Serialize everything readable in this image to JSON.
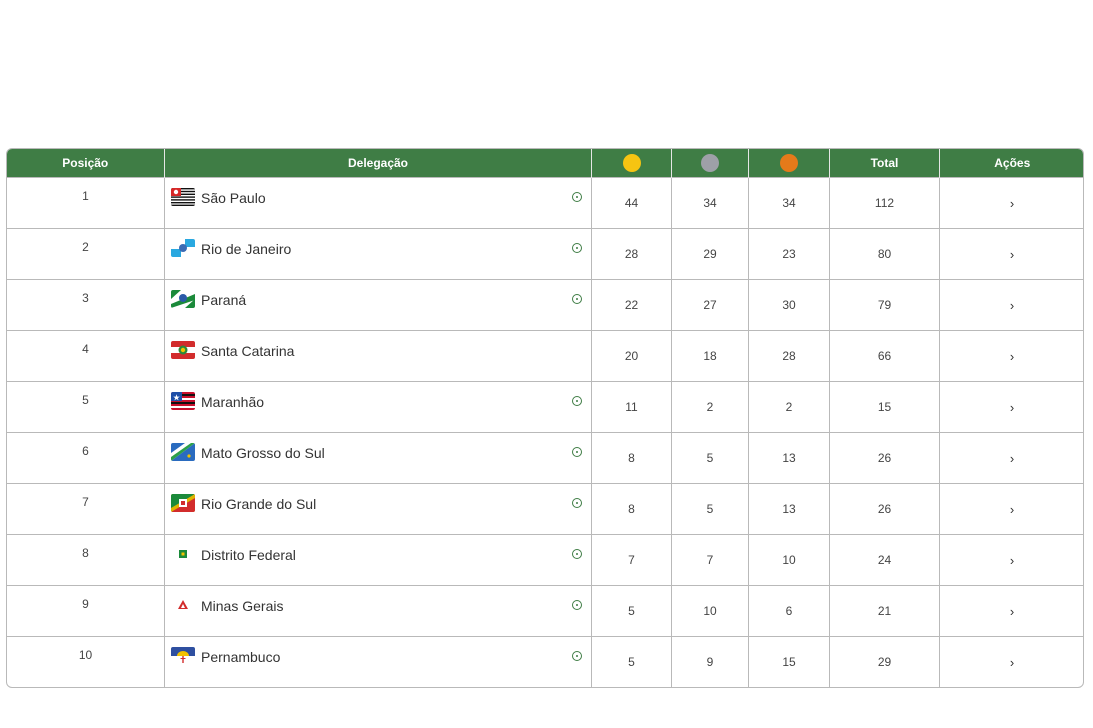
{
  "header": {
    "position": "Posição",
    "delegation": "Delegação",
    "total": "Total",
    "actions": "Ações"
  },
  "medal_colors": {
    "gold": "#f6c412",
    "silver": "#9ea0a8",
    "bronze": "#e57a1a"
  },
  "rows": [
    {
      "pos": "1",
      "name": "São Paulo",
      "gold": "44",
      "silver": "34",
      "bronze": "34",
      "total": "112",
      "info": true,
      "flag": "sp"
    },
    {
      "pos": "2",
      "name": "Rio de Janeiro",
      "gold": "28",
      "silver": "29",
      "bronze": "23",
      "total": "80",
      "info": true,
      "flag": "rj"
    },
    {
      "pos": "3",
      "name": "Paraná",
      "gold": "22",
      "silver": "27",
      "bronze": "30",
      "total": "79",
      "info": true,
      "flag": "pr"
    },
    {
      "pos": "4",
      "name": "Santa Catarina",
      "gold": "20",
      "silver": "18",
      "bronze": "28",
      "total": "66",
      "info": false,
      "flag": "sc"
    },
    {
      "pos": "5",
      "name": "Maranhão",
      "gold": "11",
      "silver": "2",
      "bronze": "2",
      "total": "15",
      "info": true,
      "flag": "ma"
    },
    {
      "pos": "6",
      "name": "Mato Grosso do Sul",
      "gold": "8",
      "silver": "5",
      "bronze": "13",
      "total": "26",
      "info": true,
      "flag": "ms"
    },
    {
      "pos": "7",
      "name": "Rio Grande do Sul",
      "gold": "8",
      "silver": "5",
      "bronze": "13",
      "total": "26",
      "info": true,
      "flag": "rs"
    },
    {
      "pos": "8",
      "name": "Distrito Federal",
      "gold": "7",
      "silver": "7",
      "bronze": "10",
      "total": "24",
      "info": true,
      "flag": "df"
    },
    {
      "pos": "9",
      "name": "Minas Gerais",
      "gold": "5",
      "silver": "10",
      "bronze": "6",
      "total": "21",
      "info": true,
      "flag": "mg"
    },
    {
      "pos": "10",
      "name": "Pernambuco",
      "gold": "5",
      "silver": "9",
      "bronze": "15",
      "total": "29",
      "info": true,
      "flag": "pe"
    }
  ],
  "action_icon": "chevron-right-icon",
  "info_icon": "info-circle-icon"
}
